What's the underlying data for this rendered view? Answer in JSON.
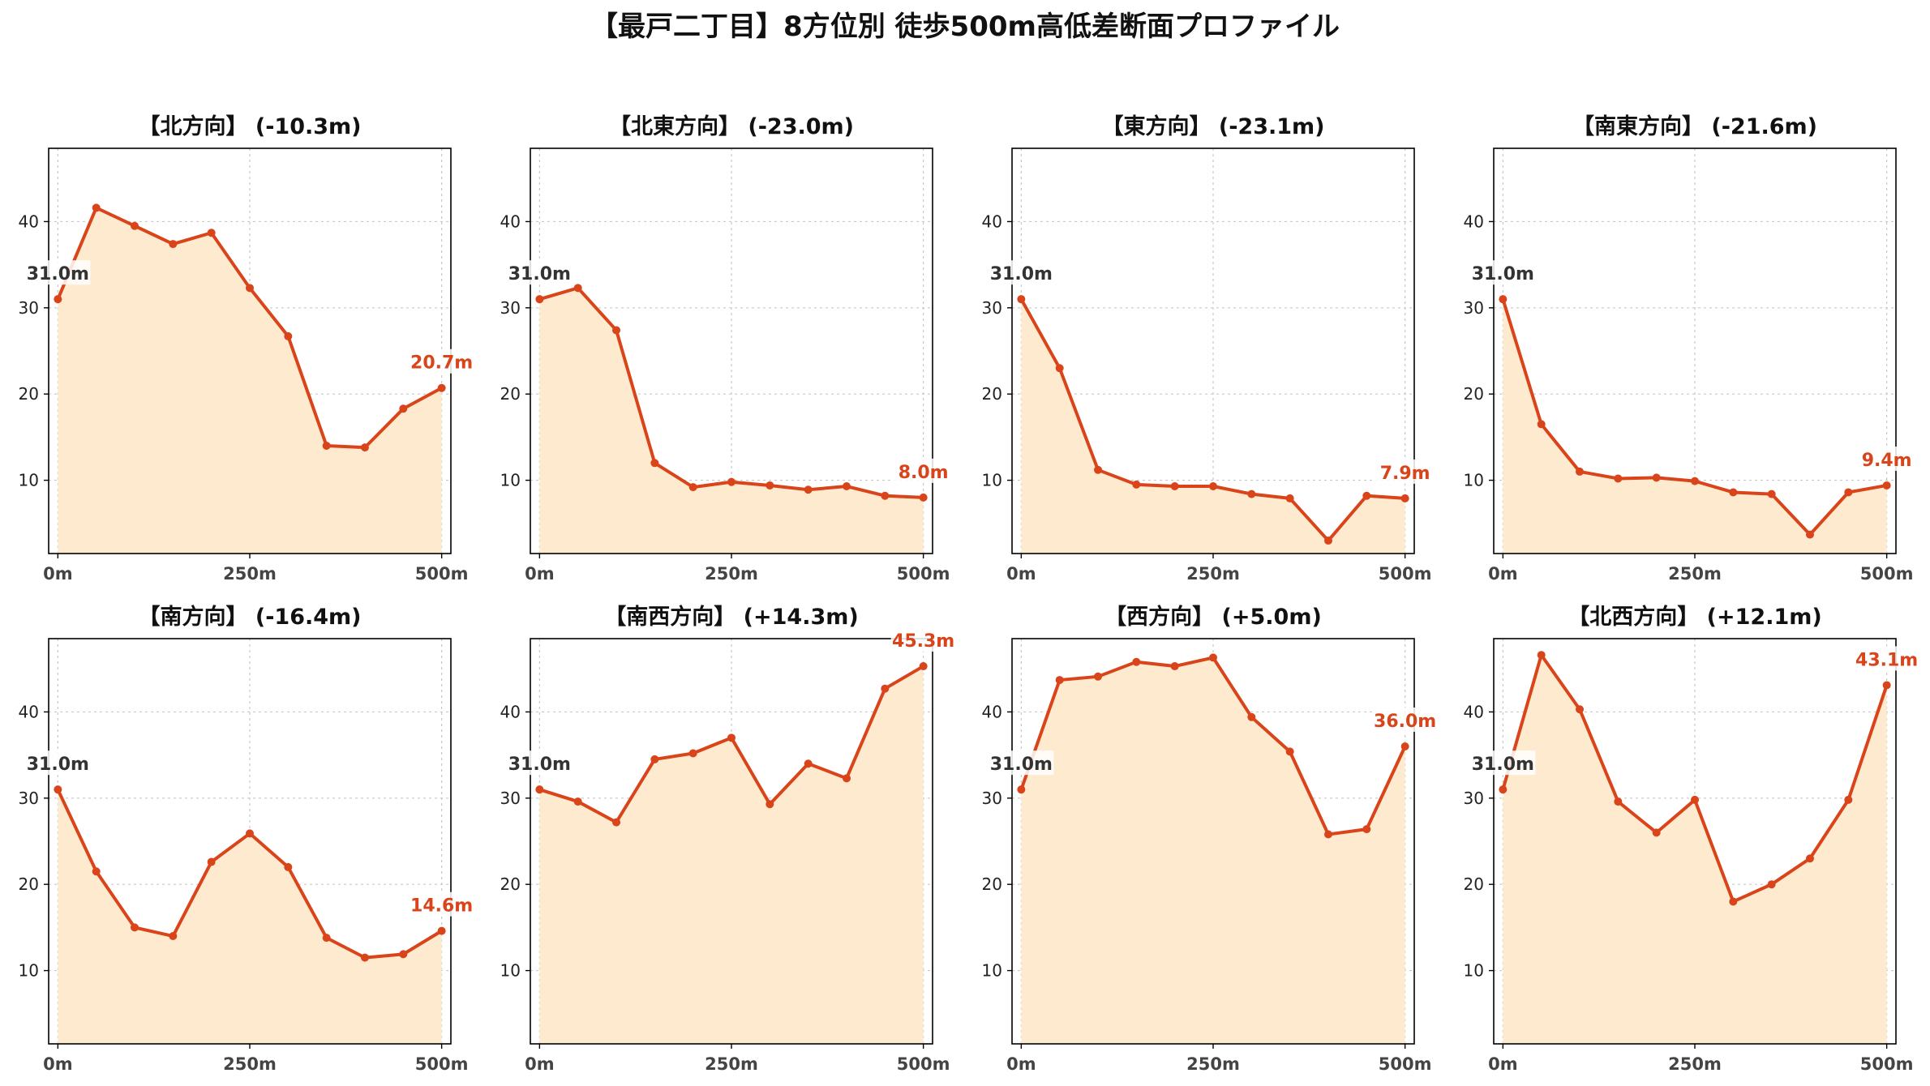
{
  "title": "【最戸二丁目】8方位別 徒歩500m高低差断面プロファイル",
  "colors": {
    "line": "#D9441A",
    "fill": "#FEEBCF",
    "start_label": "#333333",
    "end_label": "#D9441A",
    "grid": "#C8C8C8"
  },
  "chart_data": [
    {
      "type": "area",
      "title": "【北方向】 (-10.3m)",
      "x": [
        0,
        50,
        100,
        150,
        200,
        250,
        300,
        350,
        400,
        450,
        500
      ],
      "values": [
        31.0,
        41.6,
        39.5,
        37.4,
        38.7,
        32.3,
        26.7,
        14.0,
        13.8,
        18.3,
        20.7
      ],
      "start_label": "31.0m",
      "end_label": "20.7m",
      "xticks": [
        "0m",
        "250m",
        "500m"
      ],
      "yticks": [
        10,
        20,
        30,
        40
      ],
      "ylim": [
        1.5,
        48.5
      ],
      "xlim": [
        -12,
        512
      ],
      "grid": true
    },
    {
      "type": "area",
      "title": "【北東方向】 (-23.0m)",
      "x": [
        0,
        50,
        100,
        150,
        200,
        250,
        300,
        350,
        400,
        450,
        500
      ],
      "values": [
        31.0,
        32.3,
        27.4,
        12.0,
        9.2,
        9.8,
        9.4,
        8.9,
        9.3,
        8.2,
        8.0
      ],
      "start_label": "31.0m",
      "end_label": "8.0m",
      "xticks": [
        "0m",
        "250m",
        "500m"
      ],
      "yticks": [
        10,
        20,
        30,
        40
      ],
      "ylim": [
        1.5,
        48.5
      ],
      "xlim": [
        -12,
        512
      ],
      "grid": true
    },
    {
      "type": "area",
      "title": "【東方向】 (-23.1m)",
      "x": [
        0,
        50,
        100,
        150,
        200,
        250,
        300,
        350,
        400,
        450,
        500
      ],
      "values": [
        31.0,
        23.0,
        11.2,
        9.5,
        9.3,
        9.3,
        8.4,
        7.9,
        3.0,
        8.2,
        7.9
      ],
      "start_label": "31.0m",
      "end_label": "7.9m",
      "xticks": [
        "0m",
        "250m",
        "500m"
      ],
      "yticks": [
        10,
        20,
        30,
        40
      ],
      "ylim": [
        1.5,
        48.5
      ],
      "xlim": [
        -12,
        512
      ],
      "grid": true
    },
    {
      "type": "area",
      "title": "【南東方向】 (-21.6m)",
      "x": [
        0,
        50,
        100,
        150,
        200,
        250,
        300,
        350,
        400,
        450,
        500
      ],
      "values": [
        31.0,
        16.5,
        11.0,
        10.2,
        10.3,
        9.9,
        8.6,
        8.4,
        3.7,
        8.6,
        9.4
      ],
      "start_label": "31.0m",
      "end_label": "9.4m",
      "xticks": [
        "0m",
        "250m",
        "500m"
      ],
      "yticks": [
        10,
        20,
        30,
        40
      ],
      "ylim": [
        1.5,
        48.5
      ],
      "xlim": [
        -12,
        512
      ],
      "grid": true
    },
    {
      "type": "area",
      "title": "【南方向】 (-16.4m)",
      "x": [
        0,
        50,
        100,
        150,
        200,
        250,
        300,
        350,
        400,
        450,
        500
      ],
      "values": [
        31.0,
        21.5,
        15.0,
        14.0,
        22.6,
        25.9,
        22.0,
        13.8,
        11.5,
        11.9,
        14.6
      ],
      "start_label": "31.0m",
      "end_label": "14.6m",
      "xticks": [
        "0m",
        "250m",
        "500m"
      ],
      "yticks": [
        10,
        20,
        30,
        40
      ],
      "ylim": [
        1.5,
        48.5
      ],
      "xlim": [
        -12,
        512
      ],
      "grid": true
    },
    {
      "type": "area",
      "title": "【南西方向】 (+14.3m)",
      "x": [
        0,
        50,
        100,
        150,
        200,
        250,
        300,
        350,
        400,
        450,
        500
      ],
      "values": [
        31.0,
        29.6,
        27.2,
        34.5,
        35.2,
        37.0,
        29.3,
        34.0,
        32.3,
        42.7,
        45.3
      ],
      "start_label": "31.0m",
      "end_label": "45.3m",
      "xticks": [
        "0m",
        "250m",
        "500m"
      ],
      "yticks": [
        10,
        20,
        30,
        40
      ],
      "ylim": [
        1.5,
        48.5
      ],
      "xlim": [
        -12,
        512
      ],
      "grid": true
    },
    {
      "type": "area",
      "title": "【西方向】 (+5.0m)",
      "x": [
        0,
        50,
        100,
        150,
        200,
        250,
        300,
        350,
        400,
        450,
        500
      ],
      "values": [
        31.0,
        43.7,
        44.1,
        45.8,
        45.3,
        46.3,
        39.4,
        35.4,
        25.8,
        26.4,
        36.0
      ],
      "start_label": "31.0m",
      "end_label": "36.0m",
      "xticks": [
        "0m",
        "250m",
        "500m"
      ],
      "yticks": [
        10,
        20,
        30,
        40
      ],
      "ylim": [
        1.5,
        48.5
      ],
      "xlim": [
        -12,
        512
      ],
      "grid": true
    },
    {
      "type": "area",
      "title": "【北西方向】 (+12.1m)",
      "x": [
        0,
        50,
        100,
        150,
        200,
        250,
        300,
        350,
        400,
        450,
        500
      ],
      "values": [
        31.0,
        46.6,
        40.3,
        29.6,
        26.0,
        29.8,
        18.0,
        20.0,
        23.0,
        29.8,
        43.1
      ],
      "start_label": "31.0m",
      "end_label": "43.1m",
      "xticks": [
        "0m",
        "250m",
        "500m"
      ],
      "yticks": [
        10,
        20,
        30,
        40
      ],
      "ylim": [
        1.5,
        48.5
      ],
      "xlim": [
        -12,
        512
      ],
      "grid": true
    }
  ]
}
